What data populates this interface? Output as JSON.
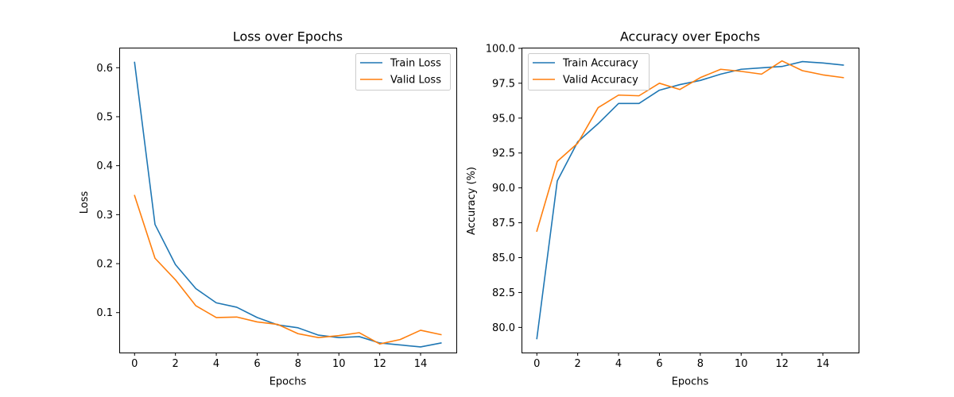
{
  "chart_data": [
    {
      "type": "line",
      "title": "Loss over Epochs",
      "xlabel": "Epochs",
      "ylabel": "Loss",
      "x": [
        0,
        1,
        2,
        3,
        4,
        5,
        6,
        7,
        8,
        9,
        10,
        11,
        12,
        13,
        14,
        15
      ],
      "xlim": [
        -0.75,
        15.75
      ],
      "ylim": [
        0.0185,
        0.641
      ],
      "xticks": [
        0,
        2,
        4,
        6,
        8,
        10,
        12,
        14
      ],
      "xtick_labels": [
        "0",
        "2",
        "4",
        "6",
        "8",
        "10",
        "12",
        "14"
      ],
      "yticks": [
        0.1,
        0.2,
        0.3,
        0.4,
        0.5,
        0.6
      ],
      "ytick_labels": [
        "0.1",
        "0.2",
        "0.3",
        "0.4",
        "0.5",
        "0.6"
      ],
      "grid": false,
      "legend_position": "top-right",
      "series": [
        {
          "name": "Train Loss",
          "color": "#1f77b4",
          "values": [
            0.611,
            0.28,
            0.198,
            0.149,
            0.12,
            0.111,
            0.09,
            0.075,
            0.069,
            0.054,
            0.049,
            0.051,
            0.038,
            0.034,
            0.03,
            0.038
          ]
        },
        {
          "name": "Valid Loss",
          "color": "#ff7f0e",
          "values": [
            0.339,
            0.211,
            0.167,
            0.114,
            0.09,
            0.091,
            0.081,
            0.076,
            0.057,
            0.049,
            0.053,
            0.059,
            0.036,
            0.045,
            0.064,
            0.055
          ]
        }
      ]
    },
    {
      "type": "line",
      "title": "Accuracy over Epochs",
      "xlabel": "Epochs",
      "ylabel": "Accuracy (%)",
      "x": [
        0,
        1,
        2,
        3,
        4,
        5,
        6,
        7,
        8,
        9,
        10,
        11,
        12,
        13,
        14,
        15
      ],
      "xlim": [
        -0.75,
        15.75
      ],
      "ylim": [
        78.2,
        100.05
      ],
      "xticks": [
        0,
        2,
        4,
        6,
        8,
        10,
        12,
        14
      ],
      "xtick_labels": [
        "0",
        "2",
        "4",
        "6",
        "8",
        "10",
        "12",
        "14"
      ],
      "yticks": [
        80.0,
        82.5,
        85.0,
        87.5,
        90.0,
        92.5,
        95.0,
        97.5,
        100.0
      ],
      "ytick_labels": [
        "80.0",
        "82.5",
        "85.0",
        "87.5",
        "90.0",
        "92.5",
        "95.0",
        "97.5",
        "100.0"
      ],
      "grid": false,
      "legend_position": "top-left",
      "series": [
        {
          "name": "Train Accuracy",
          "color": "#1f77b4",
          "values": [
            79.2,
            90.5,
            93.3,
            94.6,
            96.05,
            96.05,
            97.0,
            97.4,
            97.7,
            98.15,
            98.5,
            98.6,
            98.7,
            99.05,
            98.95,
            98.8
          ]
        },
        {
          "name": "Valid Accuracy",
          "color": "#ff7f0e",
          "values": [
            86.9,
            91.9,
            93.2,
            95.75,
            96.65,
            96.6,
            97.5,
            97.05,
            97.9,
            98.5,
            98.35,
            98.15,
            99.1,
            98.4,
            98.1,
            97.9
          ]
        }
      ]
    }
  ]
}
